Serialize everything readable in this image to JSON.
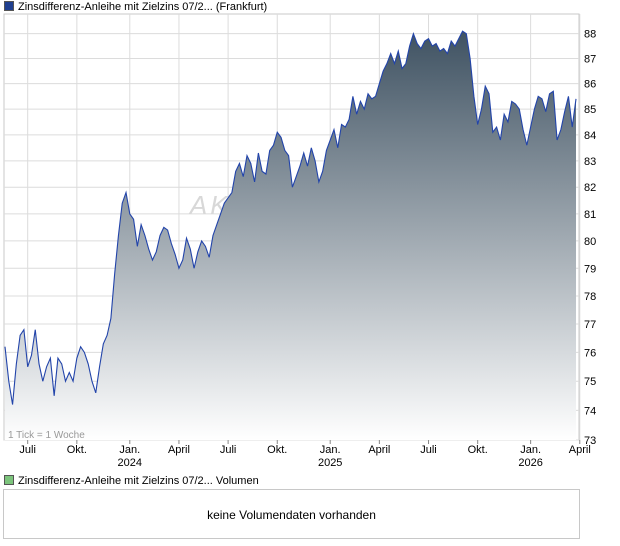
{
  "legend": {
    "price_label": "Zinsdifferenz-Anleihe mit Zielzins 07/2... (Frankfurt)",
    "price_color": "#1f3f8f",
    "volume_label": "Zinsdifferenz-Anleihe mit Zielzins 07/2... Volumen",
    "volume_color": "#7cc47c"
  },
  "tick_note": "1 Tick = 1 Woche",
  "watermark": "AKTIE",
  "volume_message": "keine Volumendaten vorhanden",
  "colors": {
    "line": "#2244aa",
    "fill_top": "#3f5262",
    "fill_bottom": "#ffffff",
    "grid": "#dcdcdc"
  },
  "chart_data": {
    "type": "area",
    "title": "",
    "xlabel": "",
    "ylabel": "",
    "ylim": [
      73,
      88.8
    ],
    "y_scale": "log",
    "grid": true,
    "y_ticks": [
      73,
      74,
      75,
      76,
      77,
      78,
      79,
      80,
      81,
      82,
      83,
      84,
      85,
      86,
      87,
      88
    ],
    "x_ticks": [
      {
        "label": "Juli",
        "sub": "",
        "week": 6
      },
      {
        "label": "Okt.",
        "sub": "",
        "week": 19
      },
      {
        "label": "Jan.",
        "sub": "2024",
        "week": 33
      },
      {
        "label": "April",
        "sub": "",
        "week": 46
      },
      {
        "label": "Juli",
        "sub": "",
        "week": 59
      },
      {
        "label": "Okt.",
        "sub": "",
        "week": 72
      },
      {
        "label": "Jan.",
        "sub": "2025",
        "week": 86
      },
      {
        "label": "April",
        "sub": "",
        "week": 99
      },
      {
        "label": "Juli",
        "sub": "",
        "week": 112
      },
      {
        "label": "Okt.",
        "sub": "",
        "week": 125
      },
      {
        "label": "Jan.",
        "sub": "2026",
        "week": 139
      },
      {
        "label": "April",
        "sub": "",
        "week": 152
      }
    ],
    "series": [
      {
        "values": [
          76.2,
          75.0,
          74.2,
          75.6,
          76.6,
          76.8,
          75.5,
          75.9,
          76.8,
          75.6,
          75.0,
          75.5,
          75.8,
          74.5,
          75.8,
          75.6,
          75.0,
          75.3,
          75.0,
          75.8,
          76.2,
          76.0,
          75.6,
          75.0,
          74.6,
          75.5,
          76.3,
          76.6,
          77.2,
          78.8,
          80.2,
          81.4,
          81.8,
          81.0,
          80.8,
          79.8,
          80.6,
          80.2,
          79.7,
          79.3,
          79.6,
          80.2,
          80.5,
          80.4,
          79.9,
          79.5,
          79.0,
          79.3,
          80.1,
          79.7,
          79.0,
          79.6,
          80.0,
          79.8,
          79.4,
          80.2,
          80.6,
          81.0,
          81.4,
          81.6,
          81.8,
          82.6,
          82.9,
          82.4,
          83.2,
          82.9,
          82.2,
          83.3,
          82.6,
          82.5,
          83.4,
          83.6,
          84.1,
          83.9,
          83.4,
          83.2,
          82.0,
          82.4,
          82.8,
          83.3,
          82.8,
          83.5,
          83.0,
          82.2,
          82.6,
          83.4,
          83.8,
          84.2,
          83.5,
          84.4,
          84.3,
          84.6,
          85.5,
          84.8,
          85.3,
          85.0,
          85.6,
          85.4,
          85.5,
          86.0,
          86.5,
          86.8,
          87.2,
          86.8,
          87.3,
          86.6,
          86.8,
          87.5,
          88.0,
          87.6,
          87.4,
          87.7,
          87.8,
          87.5,
          87.6,
          87.3,
          87.4,
          87.2,
          87.7,
          87.5,
          87.8,
          88.1,
          88.0,
          87.0,
          85.5,
          84.4,
          85.0,
          85.9,
          85.6,
          84.1,
          84.3,
          83.8,
          84.8,
          84.5,
          85.3,
          85.2,
          85.0,
          84.2,
          83.6,
          84.3,
          85.0,
          85.5,
          85.4,
          84.9,
          85.6,
          85.7,
          83.8,
          84.2,
          84.9,
          85.5,
          84.3,
          85.4
        ]
      }
    ]
  }
}
